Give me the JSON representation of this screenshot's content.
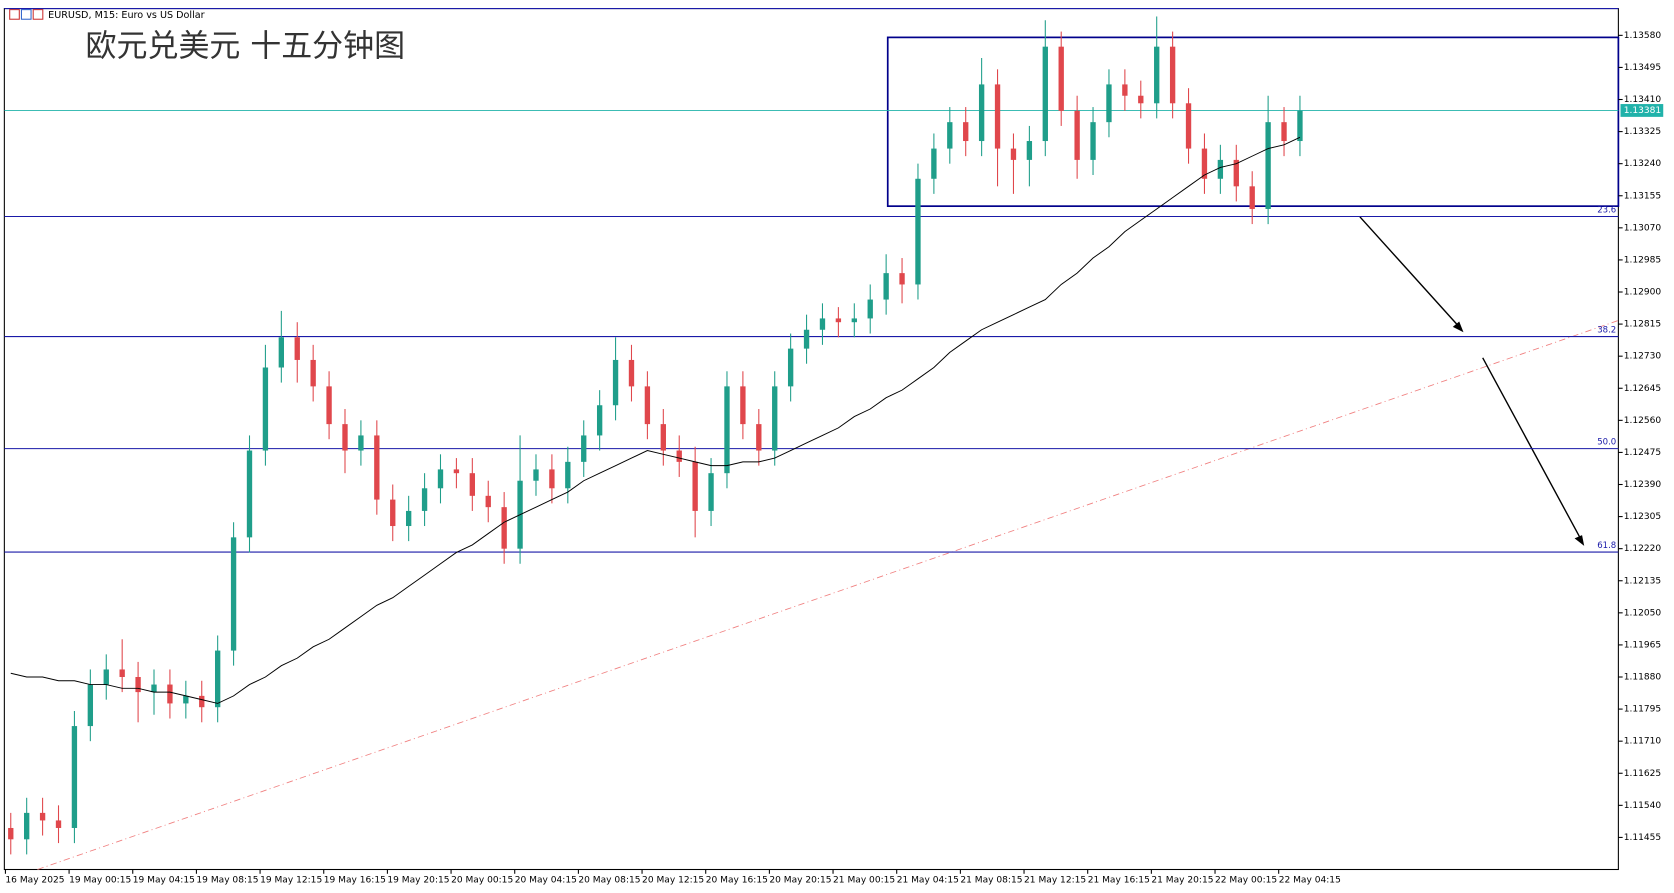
{
  "chart_data": {
    "type": "candlestick",
    "header": "EURUSD, M15: Euro vs US Dollar",
    "title": "欧元兑美元 十五分钟图",
    "up_color": "#1f9e8a",
    "down_color": "#e0474c",
    "categories": [
      "16 May 2025",
      null,
      null,
      null,
      "19 May 00:15",
      null,
      null,
      null,
      "19 May 04:15",
      null,
      null,
      null,
      "19 May 08:15",
      null,
      null,
      null,
      "19 May 12:15",
      null,
      null,
      null,
      "19 May 16:15",
      null,
      null,
      null,
      "19 May 20:15",
      null,
      null,
      null,
      "20 May 00:15",
      null,
      null,
      null,
      "20 May 04:15",
      null,
      null,
      null,
      "20 May 08:15",
      null,
      null,
      null,
      "20 May 12:15",
      null,
      null,
      null,
      "20 May 16:15",
      null,
      null,
      null,
      "20 May 20:15",
      null,
      null,
      null,
      "21 May 00:15",
      null,
      null,
      null,
      "21 May 04:15",
      null,
      null,
      null,
      "21 May 08:15",
      null,
      null,
      null,
      "21 May 12:15",
      null,
      null,
      null,
      "21 May 16:15",
      null,
      null,
      null,
      "21 May 20:15",
      null,
      null,
      null,
      "22 May 00:15",
      null,
      null,
      null,
      "22 May 04:15",
      null
    ],
    "open": [
      1.1148,
      1.1145,
      1.1152,
      1.115,
      1.1148,
      1.1175,
      1.1186,
      1.119,
      1.1188,
      1.1184,
      1.1186,
      1.1181,
      1.1183,
      1.118,
      1.1195,
      1.1225,
      1.1248,
      1.127,
      1.1278,
      1.1272,
      1.1265,
      1.1255,
      1.1248,
      1.1252,
      1.1235,
      1.1228,
      1.1232,
      1.1238,
      1.1243,
      1.1242,
      1.1236,
      1.1233,
      1.1222,
      1.124,
      1.1243,
      1.1238,
      1.1245,
      1.1252,
      1.126,
      1.1272,
      1.1265,
      1.1255,
      1.1248,
      1.1245,
      1.1232,
      1.1242,
      1.1265,
      1.1255,
      1.1248,
      1.1265,
      1.1275,
      1.128,
      1.1283,
      1.1282,
      1.1283,
      1.1288,
      1.1295,
      1.1292,
      1.132,
      1.1328,
      1.1335,
      1.133,
      1.1345,
      1.1328,
      1.1325,
      1.133,
      1.1355,
      1.1338,
      1.1325,
      1.1335,
      1.1345,
      1.1342,
      1.134,
      1.1355,
      1.134,
      1.1328,
      1.132,
      1.1325,
      1.1318,
      1.1312,
      1.1335,
      1.133
    ],
    "high": [
      1.1152,
      1.1156,
      1.1156,
      1.1154,
      1.1179,
      1.119,
      1.1194,
      1.1198,
      1.1192,
      1.119,
      1.119,
      1.1187,
      1.1187,
      1.1199,
      1.1229,
      1.1252,
      1.1276,
      1.1285,
      1.1282,
      1.1276,
      1.1269,
      1.1259,
      1.1256,
      1.1256,
      1.1239,
      1.1236,
      1.1242,
      1.1247,
      1.1246,
      1.1246,
      1.124,
      1.1237,
      1.1252,
      1.1247,
      1.1247,
      1.1249,
      1.1256,
      1.1264,
      1.1278,
      1.1276,
      1.1269,
      1.1259,
      1.1252,
      1.1249,
      1.1246,
      1.1269,
      1.1269,
      1.1259,
      1.1269,
      1.1279,
      1.1284,
      1.1287,
      1.1286,
      1.1287,
      1.1292,
      1.13,
      1.1299,
      1.1324,
      1.1332,
      1.1339,
      1.1339,
      1.1352,
      1.1349,
      1.1332,
      1.1334,
      1.1362,
      1.1359,
      1.1342,
      1.1339,
      1.1349,
      1.1349,
      1.1346,
      1.1363,
      1.1359,
      1.1344,
      1.1332,
      1.1329,
      1.1329,
      1.1322,
      1.1342,
      1.1339,
      1.1342
    ],
    "low": [
      1.1141,
      1.1141,
      1.1146,
      1.1144,
      1.1144,
      1.1171,
      1.1182,
      1.1184,
      1.1176,
      1.1178,
      1.1177,
      1.1177,
      1.1176,
      1.1176,
      1.1191,
      1.1221,
      1.1244,
      1.1266,
      1.1266,
      1.1261,
      1.1251,
      1.1242,
      1.1244,
      1.1231,
      1.1224,
      1.1224,
      1.1228,
      1.1234,
      1.1238,
      1.1232,
      1.1229,
      1.1218,
      1.1218,
      1.1236,
      1.1234,
      1.1234,
      1.1241,
      1.1248,
      1.1256,
      1.1261,
      1.1251,
      1.1244,
      1.1241,
      1.1225,
      1.1228,
      1.1238,
      1.1251,
      1.1244,
      1.1244,
      1.1261,
      1.1271,
      1.1276,
      1.1278,
      1.1278,
      1.1279,
      1.1284,
      1.1287,
      1.1288,
      1.1316,
      1.1324,
      1.1326,
      1.1326,
      1.1318,
      1.1316,
      1.1318,
      1.1326,
      1.1334,
      1.132,
      1.1321,
      1.1331,
      1.1338,
      1.1336,
      1.1336,
      1.1336,
      1.1324,
      1.1316,
      1.1316,
      1.1314,
      1.1308,
      1.1308,
      1.1326,
      1.1326
    ],
    "close": [
      1.1145,
      1.1152,
      1.115,
      1.1148,
      1.1175,
      1.1186,
      1.119,
      1.1188,
      1.1184,
      1.1186,
      1.1181,
      1.1183,
      1.118,
      1.1195,
      1.1225,
      1.1248,
      1.127,
      1.1278,
      1.1272,
      1.1265,
      1.1255,
      1.1248,
      1.1252,
      1.1235,
      1.1228,
      1.1232,
      1.1238,
      1.1243,
      1.1242,
      1.1236,
      1.1233,
      1.1222,
      1.124,
      1.1243,
      1.1238,
      1.1245,
      1.1252,
      1.126,
      1.1272,
      1.1265,
      1.1255,
      1.1248,
      1.1245,
      1.1232,
      1.1242,
      1.1265,
      1.1255,
      1.1248,
      1.1265,
      1.1275,
      1.128,
      1.1283,
      1.1282,
      1.1283,
      1.1288,
      1.1295,
      1.1292,
      1.132,
      1.1328,
      1.1335,
      1.133,
      1.1345,
      1.1328,
      1.1325,
      1.133,
      1.1355,
      1.1338,
      1.1325,
      1.1335,
      1.1345,
      1.1342,
      1.134,
      1.1355,
      1.134,
      1.1328,
      1.132,
      1.1325,
      1.1318,
      1.1312,
      1.1335,
      1.133,
      1.1338
    ],
    "moving_average": {
      "color": "#000000",
      "values": [
        1.1189,
        1.1188,
        1.1188,
        1.1187,
        1.1187,
        1.1186,
        1.1186,
        1.1185,
        1.1185,
        1.1184,
        1.1184,
        1.1183,
        1.1182,
        1.1181,
        1.1183,
        1.1186,
        1.1188,
        1.1191,
        1.1193,
        1.1196,
        1.1198,
        1.1201,
        1.1204,
        1.1207,
        1.1209,
        1.1212,
        1.1215,
        1.1218,
        1.1221,
        1.1223,
        1.1226,
        1.1229,
        1.1231,
        1.1233,
        1.1235,
        1.1237,
        1.124,
        1.1242,
        1.1244,
        1.1246,
        1.1248,
        1.1247,
        1.1246,
        1.1245,
        1.1244,
        1.1244,
        1.1245,
        1.1245,
        1.1246,
        1.1248,
        1.125,
        1.1252,
        1.1254,
        1.1257,
        1.1259,
        1.1262,
        1.1264,
        1.1267,
        1.127,
        1.1274,
        1.1277,
        1.128,
        1.1282,
        1.1284,
        1.1286,
        1.1288,
        1.1292,
        1.1295,
        1.1299,
        1.1302,
        1.1306,
        1.1309,
        1.1312,
        1.1315,
        1.1318,
        1.1321,
        1.1323,
        1.1324,
        1.1326,
        1.1328,
        1.1329,
        1.1331
      ]
    },
    "fib_levels": [
      {
        "name": "23.6",
        "value": 1.131
      },
      {
        "name": "38.2",
        "value": 1.12782
      },
      {
        "name": "50.0",
        "value": 1.12485
      },
      {
        "name": "61.8",
        "value": 1.12211
      }
    ],
    "fib_color": "#1a1aa8",
    "current_price": {
      "value": 1.13381,
      "label": "1.13381",
      "color": "#20b2aa"
    },
    "ylim": [
      1.1137,
      1.13651
    ],
    "yticks": [
      {
        "value": 1.11455,
        "label": "1.11455"
      },
      {
        "value": 1.1154,
        "label": "1.11540"
      },
      {
        "value": 1.11625,
        "label": "1.11625"
      },
      {
        "value": 1.1171,
        "label": "1.11710"
      },
      {
        "value": 1.11795,
        "label": "1.11795"
      },
      {
        "value": 1.1188,
        "label": "1.11880"
      },
      {
        "value": 1.11965,
        "label": "1.11965"
      },
      {
        "value": 1.1205,
        "label": "1.12050"
      },
      {
        "value": 1.12135,
        "label": "1.12135"
      },
      {
        "value": 1.1222,
        "label": "1.12220"
      },
      {
        "value": 1.12305,
        "label": "1.12305"
      },
      {
        "value": 1.1239,
        "label": "1.12390"
      },
      {
        "value": 1.12475,
        "label": "1.12475"
      },
      {
        "value": 1.1256,
        "label": "1.12560"
      },
      {
        "value": 1.12645,
        "label": "1.12645"
      },
      {
        "value": 1.1273,
        "label": "1.12730"
      },
      {
        "value": 1.12815,
        "label": "1.12815"
      },
      {
        "value": 1.129,
        "label": "1.12900"
      },
      {
        "value": 1.12985,
        "label": "1.12985"
      },
      {
        "value": 1.1307,
        "label": "1.13070"
      },
      {
        "value": 1.13155,
        "label": "1.13155"
      },
      {
        "value": 1.1324,
        "label": "1.13240"
      },
      {
        "value": 1.13325,
        "label": "1.13325"
      },
      {
        "value": 1.1341,
        "label": "1.13410"
      },
      {
        "value": 1.13495,
        "label": "1.13495"
      },
      {
        "value": 1.1358,
        "label": "1.13580"
      }
    ],
    "grid": false
  }
}
